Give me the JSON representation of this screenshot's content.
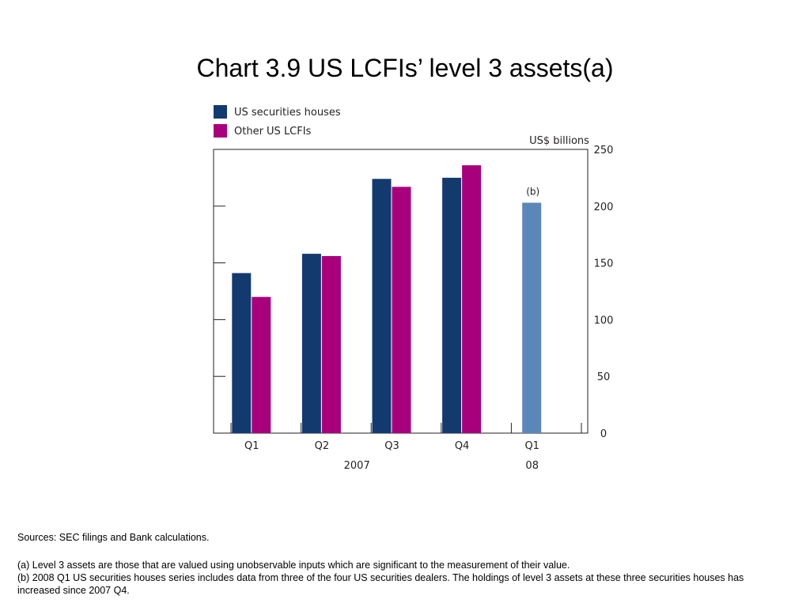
{
  "title": "Chart 3.9  US LCFIs’ level 3 assets(a)",
  "chart_data": {
    "type": "bar",
    "categories": [
      "Q1",
      "Q2",
      "Q3",
      "Q4",
      "Q1"
    ],
    "category_groups": [
      {
        "label": "2007",
        "categories": [
          0,
          1,
          2,
          3
        ]
      },
      {
        "label": "08",
        "categories": [
          4
        ]
      }
    ],
    "series": [
      {
        "name": "US securities houses",
        "color": "#133a6e",
        "values": [
          141,
          158,
          224,
          225,
          null
        ]
      },
      {
        "name": "Other US LCFIs",
        "color": "#a8007d",
        "values": [
          120,
          156,
          217,
          236,
          null
        ]
      },
      {
        "name": "",
        "color": "#5b87b8",
        "values": [
          null,
          null,
          null,
          null,
          203
        ]
      }
    ],
    "bar_annotations": [
      {
        "category_index": 4,
        "series_index": 2,
        "text": "(b)"
      }
    ],
    "ylabel": "US$ billions",
    "ylim": [
      0,
      250
    ],
    "yticks": [
      0,
      50,
      100,
      150,
      200,
      250
    ],
    "yaxis_side": "right",
    "legend_position": "top-left",
    "grid": false
  },
  "sources": "Sources:  SEC filings and Bank calculations.",
  "notes": [
    "(a)  Level 3 assets are those that are valued using unobservable inputs which are significant to the measurement of their value.",
    "(b)  2008 Q1 US securities houses series includes data from three of the four US securities dealers.  The holdings of level 3 assets at these three securities houses has increased since 2007 Q4."
  ]
}
